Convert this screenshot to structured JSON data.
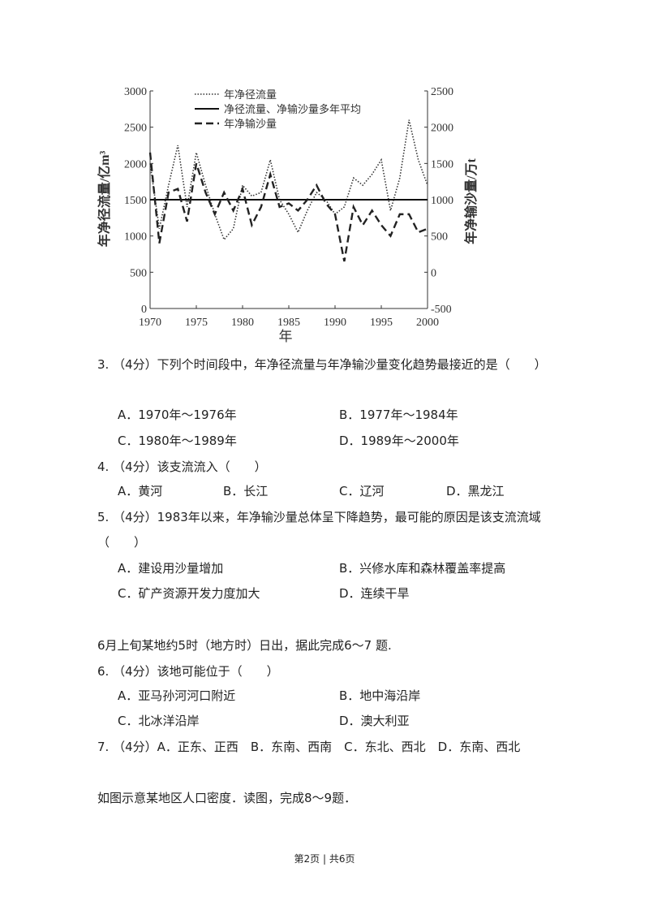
{
  "chart_data": {
    "type": "line",
    "xlabel": "年",
    "ylabel": "年净径流量/亿m³",
    "y2label": "年净输沙量/万t",
    "x": [
      1970,
      1971,
      1972,
      1973,
      1974,
      1975,
      1976,
      1977,
      1978,
      1979,
      1980,
      1981,
      1982,
      1983,
      1984,
      1985,
      1986,
      1987,
      1988,
      1989,
      1990,
      1991,
      1992,
      1993,
      1994,
      1995,
      1996,
      1997,
      1998,
      1999,
      2000
    ],
    "series": [
      {
        "name": "年净径流量",
        "color": "#333333",
        "style": "dotted",
        "values": [
          2000,
          1100,
          1700,
          2250,
          1400,
          2150,
          1700,
          1300,
          950,
          1100,
          1700,
          1550,
          1600,
          2050,
          1500,
          1300,
          1050,
          1350,
          1600,
          1500,
          1300,
          1400,
          1800,
          1700,
          1850,
          2050,
          1350,
          1800,
          2600,
          2050,
          1700
        ]
      },
      {
        "name": "净径流量、净输沙量多年平均",
        "color": "#111111",
        "style": "solid",
        "values": [
          1500,
          1500,
          1500,
          1500,
          1500,
          1500,
          1500,
          1500,
          1500,
          1500,
          1500,
          1500,
          1500,
          1500,
          1500,
          1500,
          1500,
          1500,
          1500,
          1500,
          1500,
          1500,
          1500,
          1500,
          1500,
          1500,
          1500,
          1500,
          1500,
          1500,
          1500
        ]
      },
      {
        "name": "年净输沙量",
        "color": "#222222",
        "style": "dashed",
        "axis": "y2",
        "values": [
          1650,
          400,
          1100,
          1150,
          700,
          1500,
          1100,
          800,
          1100,
          850,
          1150,
          650,
          900,
          1350,
          900,
          950,
          850,
          1000,
          1200,
          950,
          800,
          150,
          900,
          650,
          850,
          650,
          500,
          800,
          800,
          550,
          600
        ]
      }
    ],
    "xlim": [
      1970,
      2000
    ],
    "xticks": [
      1970,
      1975,
      1980,
      1985,
      1990,
      1995,
      2000
    ],
    "ylim": [
      0,
      3000
    ],
    "yticks": [
      0,
      500,
      1000,
      1500,
      2000,
      2500,
      3000
    ],
    "y2lim": [
      -500,
      2500
    ],
    "y2ticks": [
      -500,
      0,
      500,
      1000,
      1500,
      2000,
      2500
    ]
  },
  "questions": [
    {
      "stem": "3. （4分）下列个时间段中，年净径流量与年净输沙量变化趋势最接近的是（　　）",
      "options": [
        "A．1970年～1976年",
        "B．1977年～1984年",
        "C．1980年～1989年",
        "D．1989年～2000年"
      ]
    },
    {
      "stem": "4. （4分）该支流流入（　　）",
      "options": [
        "A．黄河",
        "B．长江",
        "C．辽河",
        "D．黑龙江"
      ]
    },
    {
      "stem": "5. （4分）1983年以来，年净输沙量总体呈下降趋势，最可能的原因是该支流流域（　　）",
      "options": [
        "A．建设用沙量增加",
        "B．兴修水库和森林覆盖率提高",
        "C．矿产资源开发力度加大",
        "D．连续干旱"
      ]
    }
  ],
  "intro1": "6月上旬某地约5时（地方时）日出，据此完成6～7 题.",
  "questions2": [
    {
      "stem": "6. （4分）该地可能位于（　　）",
      "options": [
        "A．亚马孙河河口附近",
        "B．地中海沿岸",
        "C．北冰洋沿岸",
        "D．澳大利亚"
      ]
    },
    {
      "stem": "7. （4分）A．正东、正西　B．东南、西南　C．东北、西北　D．东南、西北"
    }
  ],
  "intro2": "如图示意某地区人口密度．读图，完成8～9题．",
  "footer": "第2页 | 共6页"
}
